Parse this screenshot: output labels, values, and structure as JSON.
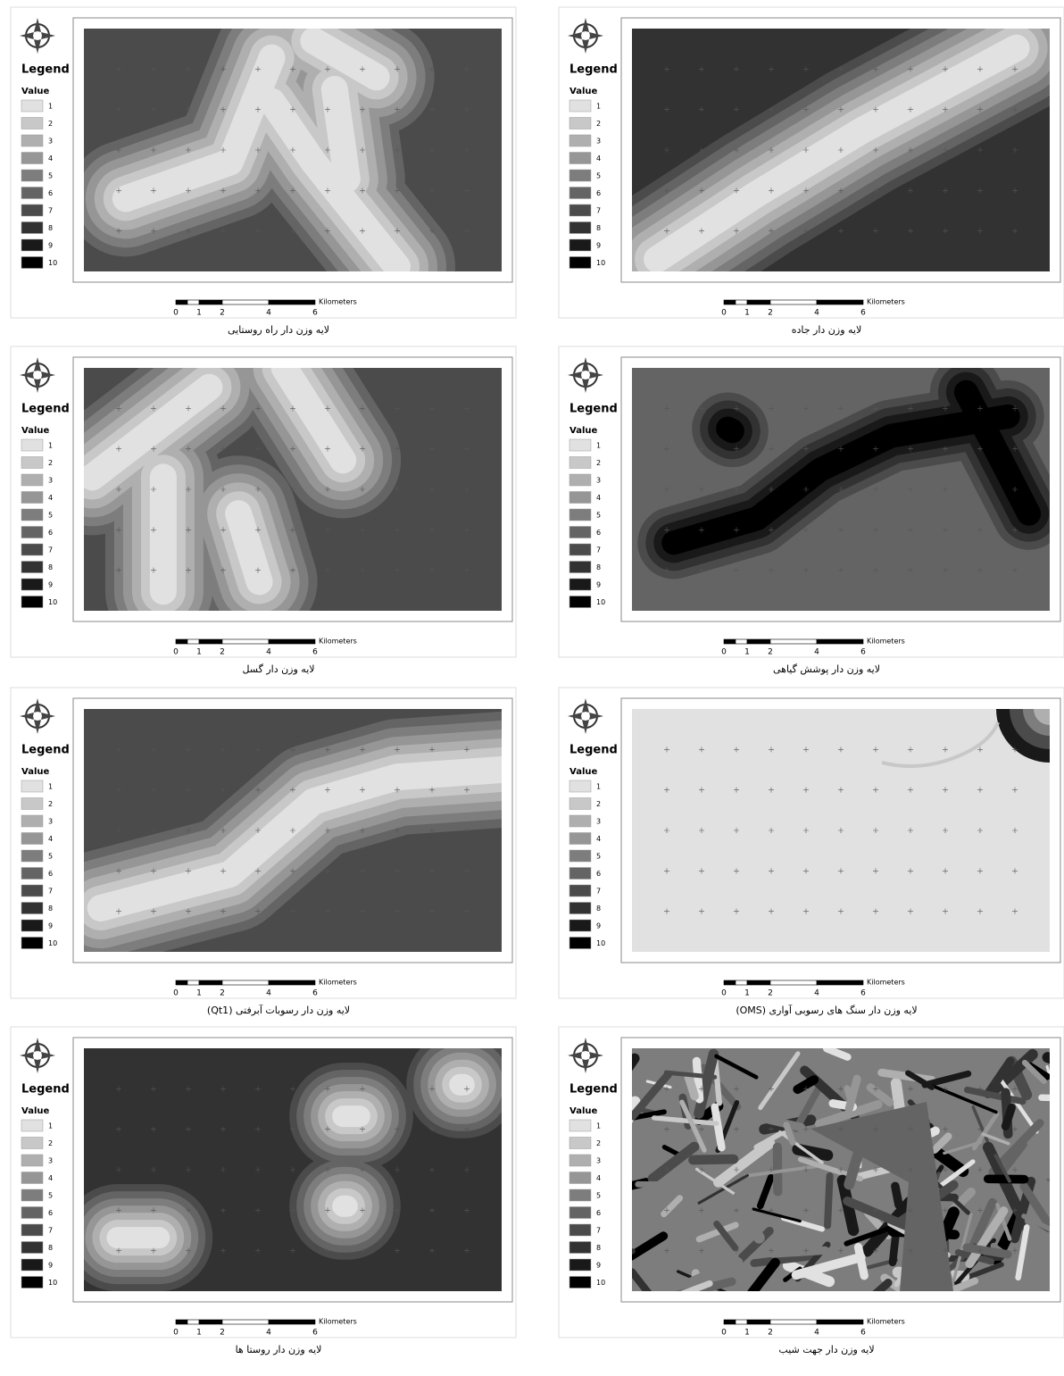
{
  "legend": {
    "title": "Legend",
    "subtitle": "Value",
    "values": [
      1,
      2,
      3,
      4,
      5,
      6,
      7,
      8,
      9,
      10
    ]
  },
  "scale_bar": {
    "ticks": [
      0,
      1,
      2,
      4,
      6
    ],
    "unit": "Kilometers"
  },
  "panels": [
    {
      "caption": "لایه وزن دار راه روستایی"
    },
    {
      "caption": "لایه وزن دار جاده"
    },
    {
      "caption": "لایه وزن دار گسل"
    },
    {
      "caption": "لایه وزن دار پوشش گیاهی"
    },
    {
      "caption": "لایه وزن دار رسوبات آبرفتی (Qt1)"
    },
    {
      "caption": "لایه وزن دار سنگ های رسوبی آواری (OMS)"
    },
    {
      "caption": "لایه وزن دار روستا ها"
    },
    {
      "caption": "لایه وزن دار جهت شیب"
    }
  ]
}
